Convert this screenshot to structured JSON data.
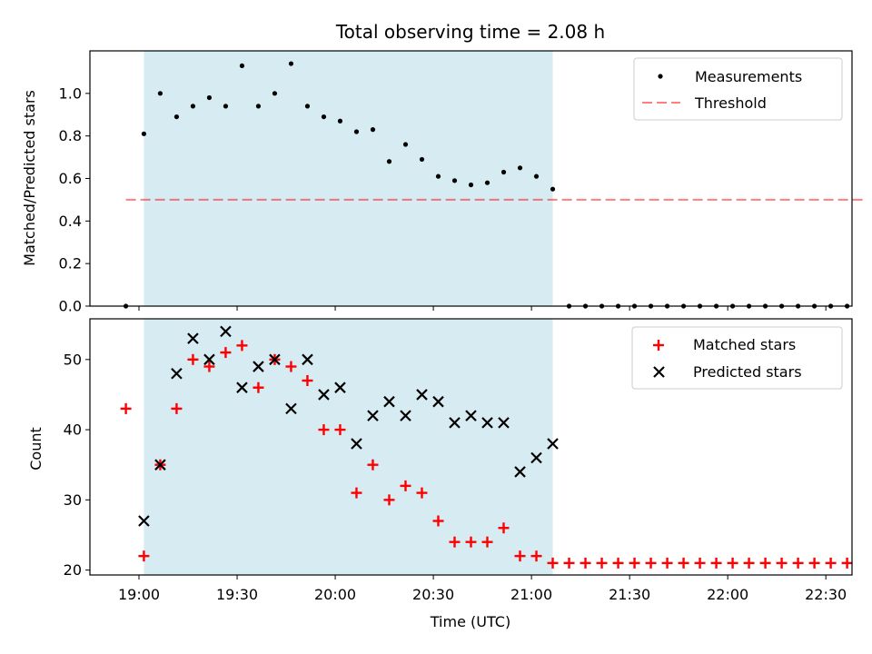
{
  "chart_data": {
    "title": "Total observing time = 2.08 h",
    "xlabel": "Time (UTC)",
    "x_ticks": [
      "19:00",
      "19:30",
      "20:00",
      "20:30",
      "21:00",
      "21:30",
      "22:00",
      "22:30"
    ],
    "x_tick_minutes": [
      1140,
      1170,
      1200,
      1230,
      1260,
      1290,
      1320,
      1350
    ],
    "xlim_minutes": [
      1125,
      1358
    ],
    "shaded_span_minutes": [
      1141.5,
      1266.5
    ],
    "colors": {
      "shade": "#add8e6",
      "threshold": "#ff0000",
      "matched": "#ff0000",
      "predicted": "#000000",
      "measurement": "#000000"
    },
    "panels": [
      {
        "type": "scatter",
        "ylabel": "Matched/Predicted stars",
        "ylim": [
          0,
          1.2
        ],
        "y_ticks": [
          "0.0",
          "0.2",
          "0.4",
          "0.6",
          "0.8",
          "1.0"
        ],
        "y_tick_values": [
          0,
          0.2,
          0.4,
          0.6,
          0.8,
          1.0
        ],
        "legend_position": "top-right",
        "threshold": {
          "name": "Threshold",
          "value": 0.5,
          "x_range_minutes": [
            1136,
            1362
          ]
        },
        "series": [
          {
            "name": "Measurements",
            "x_minutes": [
              1136,
              1141.5,
              1146.5,
              1151.5,
              1156.5,
              1161.5,
              1166.5,
              1171.5,
              1176.5,
              1181.5,
              1186.5,
              1191.5,
              1196.5,
              1201.5,
              1206.5,
              1211.5,
              1216.5,
              1221.5,
              1226.5,
              1231.5,
              1236.5,
              1241.5,
              1246.5,
              1251.5,
              1256.5,
              1261.5,
              1266.5,
              1271.5,
              1276.5,
              1281.5,
              1286.5,
              1291.5,
              1296.5,
              1301.5,
              1306.5,
              1311.5,
              1316.5,
              1321.5,
              1326.5,
              1331.5,
              1336.5,
              1341.5,
              1346.5,
              1351.5,
              1356.5
            ],
            "y": [
              0,
              0.81,
              1.0,
              0.89,
              0.94,
              0.98,
              0.94,
              1.13,
              0.94,
              1.0,
              1.14,
              0.94,
              0.89,
              0.87,
              0.82,
              0.83,
              0.68,
              0.76,
              0.69,
              0.61,
              0.59,
              0.57,
              0.58,
              0.63,
              0.65,
              0.61,
              0.55,
              0,
              0,
              0,
              0,
              0,
              0,
              0,
              0,
              0,
              0,
              0,
              0,
              0,
              0,
              0,
              0,
              0,
              0
            ]
          }
        ]
      },
      {
        "type": "scatter",
        "ylabel": "Count",
        "ylim": [
          19.3,
          55.8
        ],
        "y_ticks": [
          "20",
          "30",
          "40",
          "50"
        ],
        "y_tick_values": [
          20,
          30,
          40,
          50
        ],
        "legend_position": "top-right",
        "series": [
          {
            "name": "Matched stars",
            "marker": "plus",
            "x_minutes": [
              1136,
              1141.5,
              1146.5,
              1151.5,
              1156.5,
              1161.5,
              1166.5,
              1171.5,
              1176.5,
              1181.5,
              1186.5,
              1191.5,
              1196.5,
              1201.5,
              1206.5,
              1211.5,
              1216.5,
              1221.5,
              1226.5,
              1231.5,
              1236.5,
              1241.5,
              1246.5,
              1251.5,
              1256.5,
              1261.5,
              1266.5,
              1271.5,
              1276.5,
              1281.5,
              1286.5,
              1291.5,
              1296.5,
              1301.5,
              1306.5,
              1311.5,
              1316.5,
              1321.5,
              1326.5,
              1331.5,
              1336.5,
              1341.5,
              1346.5,
              1351.5,
              1356.5
            ],
            "y": [
              43,
              22,
              35,
              43,
              50,
              49,
              51,
              52,
              46,
              50,
              49,
              47,
              40,
              40,
              31,
              35,
              30,
              32,
              31,
              27,
              24,
              24,
              24,
              26,
              22,
              22,
              21,
              21,
              21,
              21,
              21,
              21,
              21,
              21,
              21,
              21,
              21,
              21,
              21,
              21,
              21,
              21,
              21,
              21,
              21
            ]
          },
          {
            "name": "Predicted stars",
            "marker": "x",
            "x_minutes": [
              1141.5,
              1146.5,
              1151.5,
              1156.5,
              1161.5,
              1166.5,
              1171.5,
              1176.5,
              1181.5,
              1186.5,
              1191.5,
              1196.5,
              1201.5,
              1206.5,
              1211.5,
              1216.5,
              1221.5,
              1226.5,
              1231.5,
              1236.5,
              1241.5,
              1246.5,
              1251.5,
              1256.5,
              1261.5,
              1266.5
            ],
            "y": [
              27,
              35,
              48,
              53,
              50,
              54,
              46,
              49,
              50,
              43,
              50,
              45,
              46,
              38,
              42,
              44,
              42,
              45,
              44,
              41,
              42,
              41,
              41,
              34,
              36,
              38
            ]
          }
        ]
      }
    ]
  }
}
